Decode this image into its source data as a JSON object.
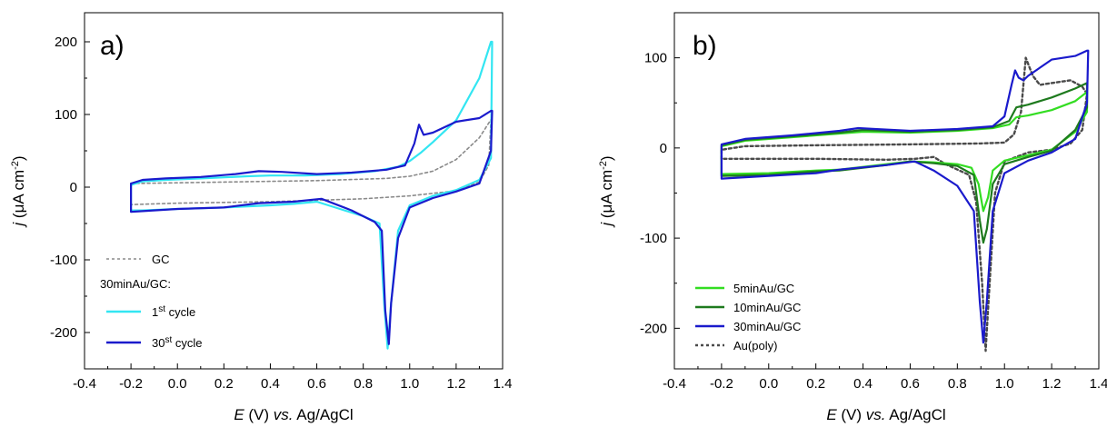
{
  "chart_data": [
    {
      "panel_label": "a)",
      "type": "line",
      "xlabel_parts": {
        "var": "E",
        "unit": " (V) ",
        "vs": "vs.",
        "ref": " Ag/AgCl"
      },
      "ylabel_parts": {
        "var": "j",
        "unit": " (μA cm",
        "exp": "-2",
        "close": ")"
      },
      "xlim": [
        -0.4,
        1.4
      ],
      "ylim": [
        -250,
        240
      ],
      "xticks": [
        -0.4,
        -0.2,
        0.0,
        0.2,
        0.4,
        0.6,
        0.8,
        1.0,
        1.2,
        1.4
      ],
      "xtick_labels": [
        "-0.4",
        "-0.2",
        "0.0",
        "0.2",
        "0.4",
        "0.6",
        "0.8",
        "1.0",
        "1.2",
        "1.4"
      ],
      "yticks": [
        -200,
        -100,
        0,
        100,
        200
      ],
      "ytick_labels": [
        "-200",
        "-100",
        "0",
        "100",
        "200"
      ],
      "legend_position": "bottom-left",
      "legend": {
        "header": "30minAu/GC:",
        "items": [
          {
            "label": "GC",
            "color": "#8a8a8a",
            "style": "dotted"
          },
          {
            "label_base": "1",
            "label_sup": "st",
            "label_tail": " cycle",
            "color": "#33e6f2",
            "style": "solid"
          },
          {
            "label_base": "30",
            "label_sup": "st",
            "label_tail": " cycle",
            "color": "#1a1acc",
            "style": "solid"
          }
        ]
      },
      "series": [
        {
          "name": "GC",
          "color": "#8a8a8a",
          "style": "dotted",
          "width": 1.6,
          "points": [
            [
              -0.2,
              5
            ],
            [
              0.2,
              7
            ],
            [
              0.6,
              9
            ],
            [
              0.9,
              12
            ],
            [
              1.0,
              15
            ],
            [
              1.1,
              22
            ],
            [
              1.2,
              38
            ],
            [
              1.3,
              68
            ],
            [
              1.35,
              93
            ],
            [
              1.34,
              30
            ],
            [
              1.3,
              7
            ],
            [
              1.2,
              -5
            ],
            [
              1.0,
              -12
            ],
            [
              0.8,
              -16
            ],
            [
              0.4,
              -20
            ],
            [
              0.0,
              -22
            ],
            [
              -0.2,
              -24
            ],
            [
              -0.2,
              5
            ]
          ]
        },
        {
          "name": "1st cycle",
          "color": "#33e6f2",
          "style": "solid",
          "width": 2.2,
          "points": [
            [
              -0.2,
              3
            ],
            [
              -0.15,
              8
            ],
            [
              -0.05,
              10
            ],
            [
              0.1,
              12
            ],
            [
              0.3,
              15
            ],
            [
              0.4,
              16
            ],
            [
              0.55,
              16
            ],
            [
              0.7,
              18
            ],
            [
              0.85,
              22
            ],
            [
              0.95,
              28
            ],
            [
              1.0,
              36
            ],
            [
              1.05,
              48
            ],
            [
              1.1,
              62
            ],
            [
              1.2,
              92
            ],
            [
              1.3,
              150
            ],
            [
              1.35,
              200
            ],
            [
              1.355,
              200
            ],
            [
              1.35,
              40
            ],
            [
              1.3,
              10
            ],
            [
              1.2,
              -4
            ],
            [
              1.1,
              -12
            ],
            [
              1.0,
              -25
            ],
            [
              0.95,
              -60
            ],
            [
              0.92,
              -160
            ],
            [
              0.905,
              -222
            ],
            [
              0.89,
              -160
            ],
            [
              0.87,
              -50
            ],
            [
              0.8,
              -40
            ],
            [
              0.7,
              -30
            ],
            [
              0.6,
              -20
            ],
            [
              0.5,
              -23
            ],
            [
              0.4,
              -25
            ],
            [
              0.2,
              -28
            ],
            [
              0.0,
              -30
            ],
            [
              -0.15,
              -32
            ],
            [
              -0.2,
              -32
            ],
            [
              -0.2,
              3
            ]
          ]
        },
        {
          "name": "30st cycle",
          "color": "#1a1acc",
          "style": "solid",
          "width": 2.2,
          "points": [
            [
              -0.2,
              5
            ],
            [
              -0.15,
              10
            ],
            [
              -0.05,
              12
            ],
            [
              0.1,
              14
            ],
            [
              0.25,
              18
            ],
            [
              0.35,
              22
            ],
            [
              0.45,
              21
            ],
            [
              0.6,
              18
            ],
            [
              0.75,
              20
            ],
            [
              0.9,
              24
            ],
            [
              0.98,
              30
            ],
            [
              1.02,
              60
            ],
            [
              1.04,
              86
            ],
            [
              1.06,
              72
            ],
            [
              1.1,
              75
            ],
            [
              1.2,
              90
            ],
            [
              1.3,
              95
            ],
            [
              1.35,
              105
            ],
            [
              1.355,
              105
            ],
            [
              1.35,
              50
            ],
            [
              1.3,
              5
            ],
            [
              1.2,
              -6
            ],
            [
              1.1,
              -15
            ],
            [
              1.0,
              -28
            ],
            [
              0.95,
              -70
            ],
            [
              0.92,
              -160
            ],
            [
              0.91,
              -216
            ],
            [
              0.895,
              -170
            ],
            [
              0.88,
              -60
            ],
            [
              0.85,
              -48
            ],
            [
              0.75,
              -32
            ],
            [
              0.62,
              -16
            ],
            [
              0.5,
              -20
            ],
            [
              0.35,
              -22
            ],
            [
              0.2,
              -28
            ],
            [
              0.0,
              -30
            ],
            [
              -0.15,
              -33
            ],
            [
              -0.2,
              -34
            ],
            [
              -0.2,
              5
            ]
          ]
        }
      ]
    },
    {
      "panel_label": "b)",
      "type": "line",
      "xlabel_parts": {
        "var": "E",
        "unit": " (V) ",
        "vs": "vs.",
        "ref": " Ag/AgCl"
      },
      "ylabel_parts": {
        "var": "j",
        "unit": " (μA cm",
        "exp": "-2",
        "close": ")"
      },
      "xlim": [
        -0.4,
        1.4
      ],
      "ylim": [
        -245,
        150
      ],
      "xticks": [
        -0.4,
        -0.2,
        0.0,
        0.2,
        0.4,
        0.6,
        0.8,
        1.0,
        1.2,
        1.4
      ],
      "xtick_labels": [
        "-0.4",
        "-0.2",
        "0.0",
        "0.2",
        "0.4",
        "0.6",
        "0.8",
        "1.0",
        "1.2",
        "1.4"
      ],
      "yticks": [
        -200,
        -100,
        0,
        100
      ],
      "ytick_labels": [
        "-200",
        "-100",
        "0",
        "100"
      ],
      "legend_position": "bottom-left",
      "legend": {
        "items": [
          {
            "label": "5minAu/GC",
            "color": "#33dd22",
            "style": "solid"
          },
          {
            "label": "10minAu/GC",
            "color": "#1e7a1e",
            "style": "solid"
          },
          {
            "label": "30minAu/GC",
            "color": "#1a1acc",
            "style": "solid"
          },
          {
            "label": "Au(poly)",
            "color": "#4a4a4a",
            "style": "dotted"
          }
        ]
      },
      "series": [
        {
          "name": "Au(poly)",
          "color": "#4a4a4a",
          "style": "dotted",
          "width": 2.4,
          "points": [
            [
              -0.2,
              -12
            ],
            [
              -0.2,
              -2
            ],
            [
              -0.1,
              2
            ],
            [
              0.2,
              3
            ],
            [
              0.6,
              4
            ],
            [
              0.9,
              5
            ],
            [
              1.0,
              6
            ],
            [
              1.04,
              15
            ],
            [
              1.07,
              40
            ],
            [
              1.09,
              100
            ],
            [
              1.12,
              80
            ],
            [
              1.15,
              70
            ],
            [
              1.2,
              72
            ],
            [
              1.28,
              75
            ],
            [
              1.33,
              68
            ],
            [
              1.35,
              60
            ],
            [
              1.33,
              20
            ],
            [
              1.28,
              5
            ],
            [
              1.2,
              -2
            ],
            [
              1.1,
              -5
            ],
            [
              1.0,
              -15
            ],
            [
              0.96,
              -50
            ],
            [
              0.93,
              -180
            ],
            [
              0.92,
              -225
            ],
            [
              0.905,
              -150
            ],
            [
              0.88,
              -60
            ],
            [
              0.85,
              -30
            ],
            [
              0.75,
              -18
            ],
            [
              0.7,
              -10
            ],
            [
              0.62,
              -12
            ],
            [
              0.5,
              -13
            ],
            [
              0.2,
              -12
            ],
            [
              0.0,
              -12
            ],
            [
              -0.2,
              -12
            ]
          ]
        },
        {
          "name": "5minAu/GC",
          "color": "#33dd22",
          "style": "solid",
          "width": 2.2,
          "points": [
            [
              -0.2,
              -29
            ],
            [
              -0.2,
              2
            ],
            [
              -0.1,
              8
            ],
            [
              0.1,
              12
            ],
            [
              0.3,
              16
            ],
            [
              0.4,
              18
            ],
            [
              0.6,
              17
            ],
            [
              0.8,
              19
            ],
            [
              0.95,
              22
            ],
            [
              1.02,
              26
            ],
            [
              1.05,
              34
            ],
            [
              1.1,
              36
            ],
            [
              1.2,
              42
            ],
            [
              1.3,
              52
            ],
            [
              1.35,
              62
            ],
            [
              1.35,
              40
            ],
            [
              1.3,
              18
            ],
            [
              1.2,
              -2
            ],
            [
              1.1,
              -8
            ],
            [
              1.0,
              -14
            ],
            [
              0.95,
              -25
            ],
            [
              0.93,
              -55
            ],
            [
              0.91,
              -70
            ],
            [
              0.89,
              -40
            ],
            [
              0.86,
              -22
            ],
            [
              0.8,
              -18
            ],
            [
              0.7,
              -16
            ],
            [
              0.6,
              -15
            ],
            [
              0.5,
              -18
            ],
            [
              0.3,
              -24
            ],
            [
              0.2,
              -25
            ],
            [
              0.0,
              -28
            ],
            [
              -0.2,
              -29
            ]
          ]
        },
        {
          "name": "10minAu/GC",
          "color": "#1e7a1e",
          "style": "solid",
          "width": 2.2,
          "points": [
            [
              -0.2,
              -31
            ],
            [
              -0.2,
              3
            ],
            [
              -0.1,
              9
            ],
            [
              0.1,
              13
            ],
            [
              0.3,
              17
            ],
            [
              0.4,
              20
            ],
            [
              0.6,
              18
            ],
            [
              0.8,
              20
            ],
            [
              0.95,
              23
            ],
            [
              1.02,
              30
            ],
            [
              1.05,
              45
            ],
            [
              1.1,
              48
            ],
            [
              1.2,
              56
            ],
            [
              1.3,
              66
            ],
            [
              1.35,
              72
            ],
            [
              1.35,
              45
            ],
            [
              1.3,
              20
            ],
            [
              1.2,
              -3
            ],
            [
              1.1,
              -10
            ],
            [
              1.0,
              -18
            ],
            [
              0.95,
              -40
            ],
            [
              0.925,
              -90
            ],
            [
              0.91,
              -105
            ],
            [
              0.895,
              -80
            ],
            [
              0.87,
              -30
            ],
            [
              0.8,
              -20
            ],
            [
              0.7,
              -17
            ],
            [
              0.6,
              -15
            ],
            [
              0.5,
              -19
            ],
            [
              0.3,
              -25
            ],
            [
              0.2,
              -26
            ],
            [
              0.0,
              -30
            ],
            [
              -0.2,
              -31
            ]
          ]
        },
        {
          "name": "30minAu/GC",
          "color": "#1a1acc",
          "style": "solid",
          "width": 2.2,
          "points": [
            [
              -0.2,
              -34
            ],
            [
              -0.2,
              4
            ],
            [
              -0.1,
              10
            ],
            [
              0.1,
              14
            ],
            [
              0.3,
              19
            ],
            [
              0.38,
              22
            ],
            [
              0.45,
              21
            ],
            [
              0.6,
              19
            ],
            [
              0.8,
              21
            ],
            [
              0.95,
              24
            ],
            [
              1.0,
              35
            ],
            [
              1.03,
              70
            ],
            [
              1.045,
              86
            ],
            [
              1.06,
              78
            ],
            [
              1.08,
              75
            ],
            [
              1.1,
              80
            ],
            [
              1.2,
              98
            ],
            [
              1.3,
              102
            ],
            [
              1.35,
              108
            ],
            [
              1.355,
              108
            ],
            [
              1.35,
              50
            ],
            [
              1.3,
              10
            ],
            [
              1.2,
              -5
            ],
            [
              1.1,
              -14
            ],
            [
              1.0,
              -28
            ],
            [
              0.95,
              -70
            ],
            [
              0.925,
              -170
            ],
            [
              0.91,
              -216
            ],
            [
              0.895,
              -170
            ],
            [
              0.87,
              -70
            ],
            [
              0.8,
              -42
            ],
            [
              0.7,
              -25
            ],
            [
              0.62,
              -15
            ],
            [
              0.5,
              -19
            ],
            [
              0.3,
              -24
            ],
            [
              0.2,
              -28
            ],
            [
              0.0,
              -31
            ],
            [
              -0.2,
              -34
            ]
          ]
        }
      ]
    }
  ]
}
